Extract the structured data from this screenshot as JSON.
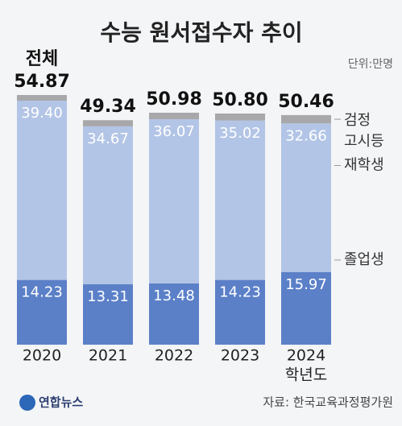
{
  "chart_data": {
    "type": "stacked-bar",
    "title": "수능 원서접수자 추이",
    "unit": "단위:만명",
    "categories": [
      "2020",
      "2021",
      "2022",
      "2023",
      "2024"
    ],
    "x_label": "학년도",
    "series": [
      {
        "name": "졸업생",
        "color": "#5b80c8",
        "values": [
          14.23,
          13.31,
          13.48,
          14.23,
          15.97
        ],
        "value_labels": [
          "14.23",
          "13.31",
          "13.48",
          "14.23",
          "15.97"
        ]
      },
      {
        "name": "재학생",
        "color": "#b3c5e6",
        "values": [
          39.4,
          34.67,
          36.07,
          35.02,
          32.66
        ],
        "value_labels": [
          "39.40",
          "34.67",
          "36.07",
          "35.02",
          "32.66"
        ]
      },
      {
        "name": "검정 고시등",
        "color": "#a8a8aa",
        "values": [
          1.24,
          1.36,
          1.43,
          1.55,
          1.83
        ]
      }
    ],
    "totals": {
      "name": "전체",
      "values": [
        54.87,
        49.34,
        50.98,
        50.8,
        50.46
      ],
      "value_labels": [
        "54.87",
        "49.34",
        "50.98",
        "50.80",
        "50.46"
      ]
    },
    "source": "자료: 한국교육과정평가원",
    "logo": "연합뉴스"
  }
}
